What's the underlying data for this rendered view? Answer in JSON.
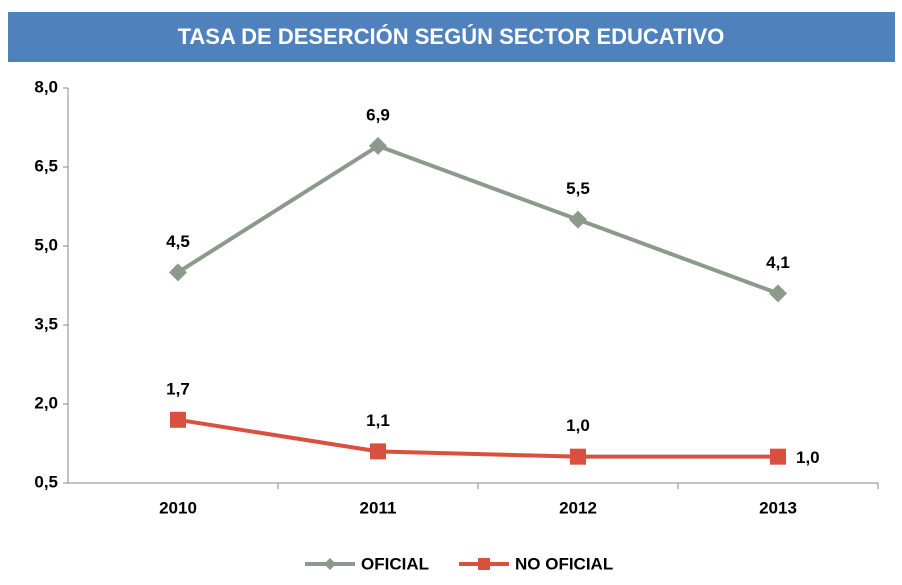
{
  "chart_data": {
    "type": "line",
    "title": "TASA DE DESERCIÓN SEGÚN SECTOR EDUCATIVO",
    "categories": [
      "2010",
      "2011",
      "2012",
      "2013"
    ],
    "series": [
      {
        "name": "OFICIAL",
        "color": "#8c9a8c",
        "marker": "diamond",
        "values": [
          4.5,
          6.9,
          5.5,
          4.1
        ],
        "value_labels": [
          "4,5",
          "6,9",
          "5,5",
          "4,1"
        ]
      },
      {
        "name": "NO OFICIAL",
        "color": "#d9503f",
        "marker": "square",
        "values": [
          1.7,
          1.1,
          1.0,
          1.0
        ],
        "value_labels": [
          "1,7",
          "1,1",
          "1,0",
          "1,0"
        ]
      }
    ],
    "ylim": [
      0.5,
      8.0
    ],
    "yticks": [
      {
        "value": 0.5,
        "label": "0,5"
      },
      {
        "value": 2.0,
        "label": "2,0"
      },
      {
        "value": 3.5,
        "label": "3,5"
      },
      {
        "value": 5.0,
        "label": "5,0"
      },
      {
        "value": 6.5,
        "label": "6,5"
      },
      {
        "value": 8.0,
        "label": "8,0"
      }
    ],
    "grid": false,
    "legend": "bottom"
  }
}
